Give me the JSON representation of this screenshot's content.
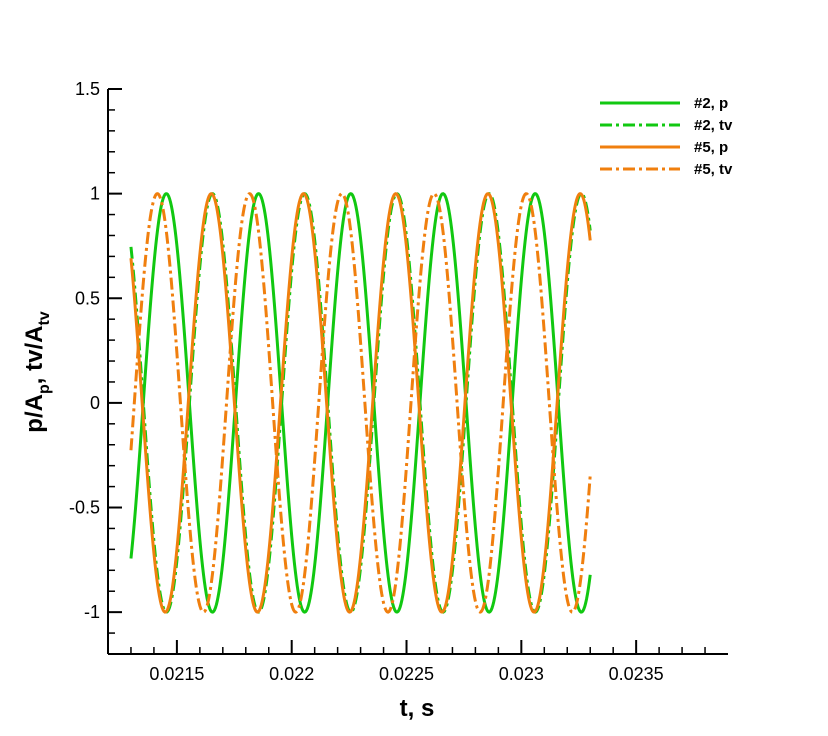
{
  "chart_data": {
    "type": "line",
    "xlabel": "t, s",
    "ylabel": {
      "parts": [
        "p/A",
        "p",
        ", tv/A",
        "tv"
      ]
    },
    "xlim": [
      0.0212,
      0.0239
    ],
    "ylim": [
      -1.2,
      1.5
    ],
    "x_ticks": [
      {
        "value": 0.0215,
        "label": "0.0215"
      },
      {
        "value": 0.022,
        "label": "0.022"
      },
      {
        "value": 0.0225,
        "label": "0.0225"
      },
      {
        "value": 0.023,
        "label": "0.023"
      },
      {
        "value": 0.0235,
        "label": "0.0235"
      }
    ],
    "y_ticks": [
      {
        "value": -1,
        "label": "-1"
      },
      {
        "value": -0.5,
        "label": "-0.5"
      },
      {
        "value": 0,
        "label": "0"
      },
      {
        "value": 0.5,
        "label": "0.5"
      },
      {
        "value": 1,
        "label": "1"
      },
      {
        "value": 1.5,
        "label": "1.5"
      }
    ],
    "legend_position": "top-right",
    "x_range": [
      0.0213,
      0.0233
    ],
    "series": [
      {
        "name": "#2, p",
        "color": "#11c811",
        "dash": "solid",
        "amplitude": 1,
        "frequency_hz": 2490,
        "first_peak_t": 0.021454
      },
      {
        "name": "#2, tv",
        "color": "#11c811",
        "dash": "dashdot",
        "amplitude": 1,
        "frequency_hz": 2490,
        "first_peak_t": 0.021655
      },
      {
        "name": "#5, p",
        "color": "#f07f0e",
        "dash": "solid",
        "amplitude": 1,
        "frequency_hz": 2490,
        "first_peak_t": 0.02165
      },
      {
        "name": "#5, tv",
        "color": "#f07f0e",
        "dash": "dashdot",
        "amplitude": 1,
        "frequency_hz": 2490,
        "first_peak_t": 0.021415
      }
    ]
  }
}
